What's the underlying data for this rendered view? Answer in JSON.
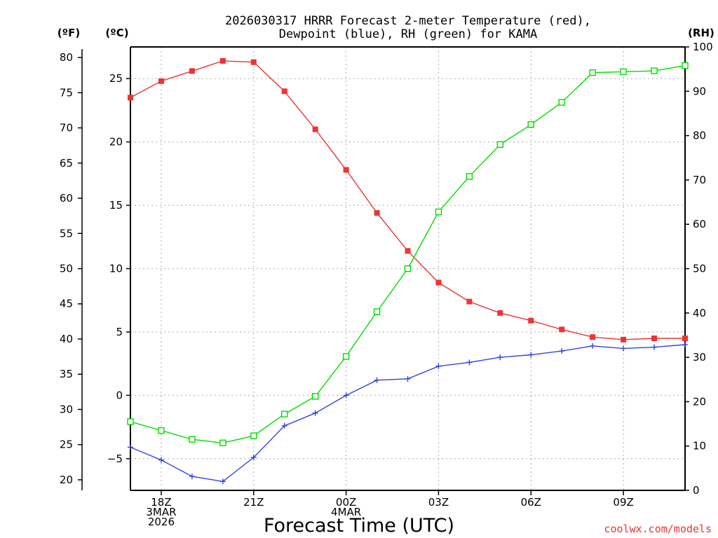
{
  "chart_data": {
    "type": "line",
    "title_line1": "2026030317 HRRR Forecast 2-meter Temperature (red),",
    "title_line2": "Dewpoint (blue), RH (green) for KAMA",
    "unit_f": "(ºF)",
    "unit_c": "(ºC)",
    "unit_rh": "(RH)",
    "xlabel": "Forecast Time (UTC)",
    "credit": "coolwx.com/models",
    "colors": {
      "temperature": "#ee3333",
      "dewpoint": "#3344dd",
      "rh": "#00dd00",
      "grid": "#aaaaaa",
      "credit": "#ee3333"
    },
    "x_hours": [
      0,
      1,
      2,
      3,
      4,
      5,
      6,
      7,
      8,
      9,
      10,
      11,
      12,
      13,
      14,
      15,
      16,
      17,
      18
    ],
    "x_range_hours": [
      0,
      18
    ],
    "x_ticks": [
      {
        "hour": 1,
        "lines": [
          "18Z",
          "3MAR",
          "2026"
        ]
      },
      {
        "hour": 4,
        "lines": [
          "21Z"
        ]
      },
      {
        "hour": 7,
        "lines": [
          "00Z",
          "4MAR"
        ]
      },
      {
        "hour": 10,
        "lines": [
          "03Z"
        ]
      },
      {
        "hour": 13,
        "lines": [
          "06Z"
        ]
      },
      {
        "hour": 16,
        "lines": [
          "09Z"
        ]
      }
    ],
    "celsius_axis": {
      "range": [
        -7.5,
        27.5
      ],
      "ticks": [
        25,
        20,
        15,
        10,
        5,
        0,
        -5
      ],
      "tick_labels": [
        "25",
        "20",
        "15",
        "10",
        "5",
        "0",
        "−5"
      ]
    },
    "fahrenheit_axis": {
      "ticks": [
        80,
        75,
        70,
        65,
        60,
        55,
        50,
        45,
        40,
        35,
        30,
        25,
        20
      ],
      "tick_labels": [
        "80",
        "75",
        "70",
        "65",
        "60",
        "55",
        "50",
        "45",
        "40",
        "35",
        "30",
        "25",
        "20"
      ]
    },
    "rh_axis": {
      "range": [
        0,
        100
      ],
      "ticks": [
        100,
        90,
        80,
        70,
        60,
        50,
        40,
        30,
        20,
        10,
        0
      ],
      "tick_labels": [
        "100",
        "90",
        "80",
        "70",
        "60",
        "50",
        "40",
        "30",
        "20",
        "10",
        "0"
      ]
    },
    "series": [
      {
        "name": "Temperature",
        "unit": "°C",
        "axis": "celsius",
        "marker": "filled-square",
        "values": [
          23.5,
          24.8,
          25.6,
          26.4,
          26.3,
          24.0,
          21.0,
          17.8,
          14.4,
          11.4,
          8.9,
          7.4,
          6.5,
          5.9,
          5.2,
          4.6,
          4.4,
          4.5,
          4.5
        ]
      },
      {
        "name": "Dewpoint",
        "unit": "°C",
        "axis": "celsius",
        "marker": "plus",
        "values": [
          -4.1,
          -5.1,
          -6.4,
          -6.8,
          -4.9,
          -2.4,
          -1.4,
          0.0,
          1.2,
          1.3,
          2.3,
          2.6,
          3.0,
          3.2,
          3.5,
          3.9,
          3.7,
          3.8,
          4.0
        ]
      },
      {
        "name": "RH",
        "unit": "%",
        "axis": "rh",
        "marker": "open-square",
        "values": [
          15.5,
          13.5,
          11.5,
          10.7,
          12.3,
          17.2,
          21.2,
          30.2,
          40.3,
          50.0,
          62.8,
          70.8,
          78.0,
          82.5,
          87.5,
          94.2,
          94.4,
          94.6,
          95.8
        ]
      }
    ]
  }
}
